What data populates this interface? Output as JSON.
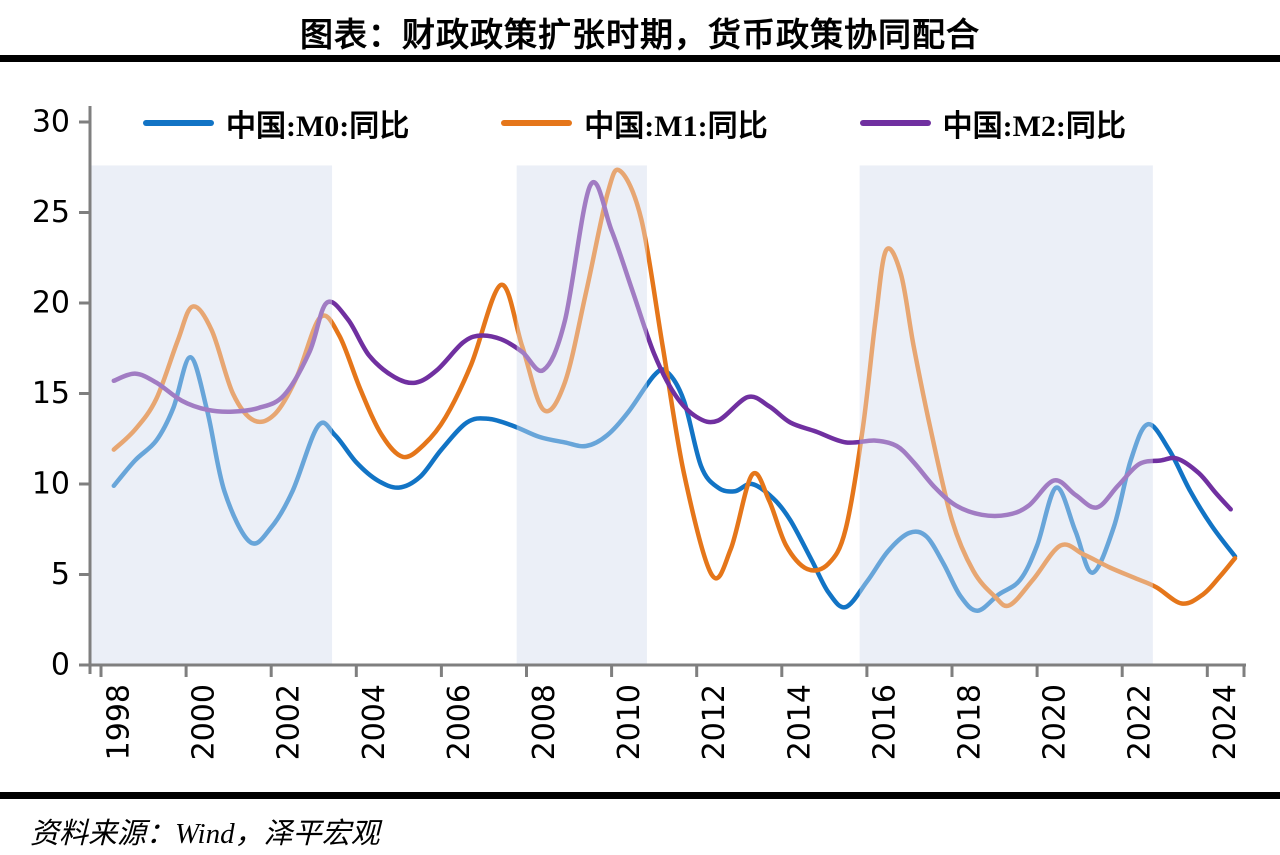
{
  "title": "图表：财政政策扩张时期，货币政策协同配合",
  "source": "资料来源：Wind，泽平宏观",
  "colors": {
    "m0_blue": "#1274C5",
    "m1_orange": "#E5761A",
    "m2_purple": "#7030A0",
    "shaded_region": "#ECEFF7",
    "axis": "#7F7F7F",
    "text": "#000000"
  },
  "legend": [
    {
      "label": "中国:M0:同比",
      "color": "#1274C5"
    },
    {
      "label": "中国:M1:同比",
      "color": "#E5761A"
    },
    {
      "label": "中国:M2:同比",
      "color": "#7030A0"
    }
  ],
  "chart_data": {
    "type": "line",
    "title": "图表：财政政策扩张时期，货币政策协同配合",
    "xlabel": "",
    "ylabel": "",
    "x_ticks": [
      1998,
      2000,
      2002,
      2004,
      2006,
      2008,
      2010,
      2012,
      2014,
      2016,
      2018,
      2020,
      2022,
      2024
    ],
    "x_range": [
      1997.74,
      2025.0
    ],
    "y_ticks": [
      0,
      5,
      10,
      15,
      20,
      25,
      30
    ],
    "y_range": [
      0,
      30
    ],
    "grid": false,
    "legend_position": "top",
    "shaded_regions": {
      "meaning": "财政政策扩张时期",
      "color": "#ECEFF7",
      "overlay_alpha": 0.4,
      "top_value": 27.6,
      "spans": [
        [
          1997.74,
          2003.43
        ],
        [
          2007.77,
          2010.83
        ],
        [
          2015.83,
          2022.72
        ]
      ]
    },
    "series": [
      {
        "name": "中国:M0:同比",
        "color": "#1274C5",
        "points": [
          [
            1998.3,
            9.9
          ],
          [
            1998.8,
            11.3
          ],
          [
            1999.3,
            12.4
          ],
          [
            1999.7,
            14.2
          ],
          [
            2000.1,
            17.0
          ],
          [
            2000.5,
            14.0
          ],
          [
            2000.9,
            9.6
          ],
          [
            2001.5,
            6.8
          ],
          [
            2002.0,
            7.6
          ],
          [
            2002.5,
            9.6
          ],
          [
            2003.1,
            13.2
          ],
          [
            2003.5,
            12.7
          ],
          [
            2004.0,
            11.2
          ],
          [
            2004.5,
            10.2
          ],
          [
            2005.0,
            9.8
          ],
          [
            2005.5,
            10.4
          ],
          [
            2006.0,
            11.9
          ],
          [
            2006.6,
            13.4
          ],
          [
            2007.1,
            13.6
          ],
          [
            2007.7,
            13.2
          ],
          [
            2008.3,
            12.6
          ],
          [
            2008.9,
            12.3
          ],
          [
            2009.4,
            12.1
          ],
          [
            2009.9,
            12.7
          ],
          [
            2010.4,
            14.0
          ],
          [
            2011.0,
            16.0
          ],
          [
            2011.3,
            16.2
          ],
          [
            2011.7,
            14.6
          ],
          [
            2012.1,
            11.0
          ],
          [
            2012.5,
            9.8
          ],
          [
            2012.9,
            9.6
          ],
          [
            2013.3,
            10.0
          ],
          [
            2013.8,
            9.2
          ],
          [
            2014.2,
            8.0
          ],
          [
            2014.7,
            5.8
          ],
          [
            2015.1,
            4.0
          ],
          [
            2015.5,
            3.2
          ],
          [
            2016.0,
            4.6
          ],
          [
            2016.5,
            6.3
          ],
          [
            2017.0,
            7.3
          ],
          [
            2017.4,
            7.1
          ],
          [
            2017.8,
            5.6
          ],
          [
            2018.2,
            3.8
          ],
          [
            2018.6,
            3.0
          ],
          [
            2019.1,
            3.9
          ],
          [
            2019.6,
            4.7
          ],
          [
            2020.0,
            6.6
          ],
          [
            2020.45,
            9.8
          ],
          [
            2020.9,
            7.4
          ],
          [
            2021.3,
            5.1
          ],
          [
            2021.8,
            7.6
          ],
          [
            2022.2,
            11.3
          ],
          [
            2022.6,
            13.3
          ],
          [
            2023.1,
            11.9
          ],
          [
            2023.6,
            9.6
          ],
          [
            2024.1,
            7.7
          ],
          [
            2024.65,
            6.0
          ]
        ]
      },
      {
        "name": "中国:M1:同比",
        "color": "#E5761A",
        "points": [
          [
            1998.3,
            11.9
          ],
          [
            1998.8,
            13.0
          ],
          [
            1999.3,
            14.7
          ],
          [
            1999.8,
            17.9
          ],
          [
            2000.15,
            19.8
          ],
          [
            2000.6,
            18.5
          ],
          [
            2001.1,
            15.0
          ],
          [
            2001.6,
            13.5
          ],
          [
            2002.1,
            13.9
          ],
          [
            2002.6,
            15.9
          ],
          [
            2003.15,
            19.2
          ],
          [
            2003.6,
            18.2
          ],
          [
            2004.1,
            15.2
          ],
          [
            2004.6,
            12.7
          ],
          [
            2005.1,
            11.5
          ],
          [
            2005.6,
            12.2
          ],
          [
            2006.1,
            13.7
          ],
          [
            2006.7,
            16.6
          ],
          [
            2007.4,
            21.0
          ],
          [
            2007.9,
            17.6
          ],
          [
            2008.4,
            14.1
          ],
          [
            2008.9,
            15.6
          ],
          [
            2009.4,
            20.6
          ],
          [
            2009.9,
            26.0
          ],
          [
            2010.2,
            27.3
          ],
          [
            2010.7,
            24.6
          ],
          [
            2011.2,
            17.6
          ],
          [
            2011.7,
            10.6
          ],
          [
            2012.35,
            5.0
          ],
          [
            2012.8,
            6.4
          ],
          [
            2013.3,
            10.5
          ],
          [
            2013.7,
            9.1
          ],
          [
            2014.1,
            6.6
          ],
          [
            2014.6,
            5.3
          ],
          [
            2015.1,
            5.6
          ],
          [
            2015.5,
            7.5
          ],
          [
            2015.9,
            13.0
          ],
          [
            2016.2,
            19.0
          ],
          [
            2016.45,
            22.9
          ],
          [
            2016.8,
            21.6
          ],
          [
            2017.1,
            17.6
          ],
          [
            2017.5,
            13.0
          ],
          [
            2018.0,
            8.0
          ],
          [
            2018.5,
            5.2
          ],
          [
            2019.0,
            3.8
          ],
          [
            2019.35,
            3.3
          ],
          [
            2019.9,
            4.7
          ],
          [
            2020.55,
            6.6
          ],
          [
            2021.1,
            6.1
          ],
          [
            2021.7,
            5.4
          ],
          [
            2022.3,
            4.8
          ],
          [
            2022.8,
            4.3
          ],
          [
            2023.4,
            3.4
          ],
          [
            2023.9,
            3.9
          ],
          [
            2024.3,
            4.9
          ],
          [
            2024.65,
            5.9
          ]
        ]
      },
      {
        "name": "中国:M2:同比",
        "color": "#7030A0",
        "points": [
          [
            1998.3,
            15.7
          ],
          [
            1998.8,
            16.1
          ],
          [
            1999.3,
            15.6
          ],
          [
            1999.9,
            14.6
          ],
          [
            2000.5,
            14.1
          ],
          [
            2001.1,
            14.0
          ],
          [
            2001.7,
            14.2
          ],
          [
            2002.3,
            14.9
          ],
          [
            2002.9,
            17.3
          ],
          [
            2003.3,
            20.0
          ],
          [
            2003.8,
            19.1
          ],
          [
            2004.3,
            17.1
          ],
          [
            2004.9,
            15.9
          ],
          [
            2005.4,
            15.6
          ],
          [
            2005.9,
            16.3
          ],
          [
            2006.5,
            17.8
          ],
          [
            2006.9,
            18.2
          ],
          [
            2007.4,
            18.0
          ],
          [
            2007.9,
            17.3
          ],
          [
            2008.4,
            16.3
          ],
          [
            2008.9,
            19.0
          ],
          [
            2009.5,
            26.5
          ],
          [
            2010.0,
            24.0
          ],
          [
            2010.5,
            20.6
          ],
          [
            2011.0,
            17.2
          ],
          [
            2011.5,
            14.9
          ],
          [
            2012.0,
            13.7
          ],
          [
            2012.5,
            13.5
          ],
          [
            2013.2,
            14.8
          ],
          [
            2013.7,
            14.3
          ],
          [
            2014.2,
            13.4
          ],
          [
            2014.8,
            12.9
          ],
          [
            2015.5,
            12.3
          ],
          [
            2016.2,
            12.4
          ],
          [
            2016.7,
            12.1
          ],
          [
            2017.1,
            11.2
          ],
          [
            2017.6,
            9.8
          ],
          [
            2018.1,
            8.8
          ],
          [
            2018.7,
            8.3
          ],
          [
            2019.3,
            8.3
          ],
          [
            2019.8,
            8.8
          ],
          [
            2020.4,
            10.2
          ],
          [
            2020.9,
            9.4
          ],
          [
            2021.4,
            8.7
          ],
          [
            2021.9,
            9.9
          ],
          [
            2022.4,
            11.1
          ],
          [
            2022.9,
            11.3
          ],
          [
            2023.3,
            11.4
          ],
          [
            2023.8,
            10.6
          ],
          [
            2024.2,
            9.5
          ],
          [
            2024.55,
            8.6
          ]
        ]
      }
    ]
  }
}
